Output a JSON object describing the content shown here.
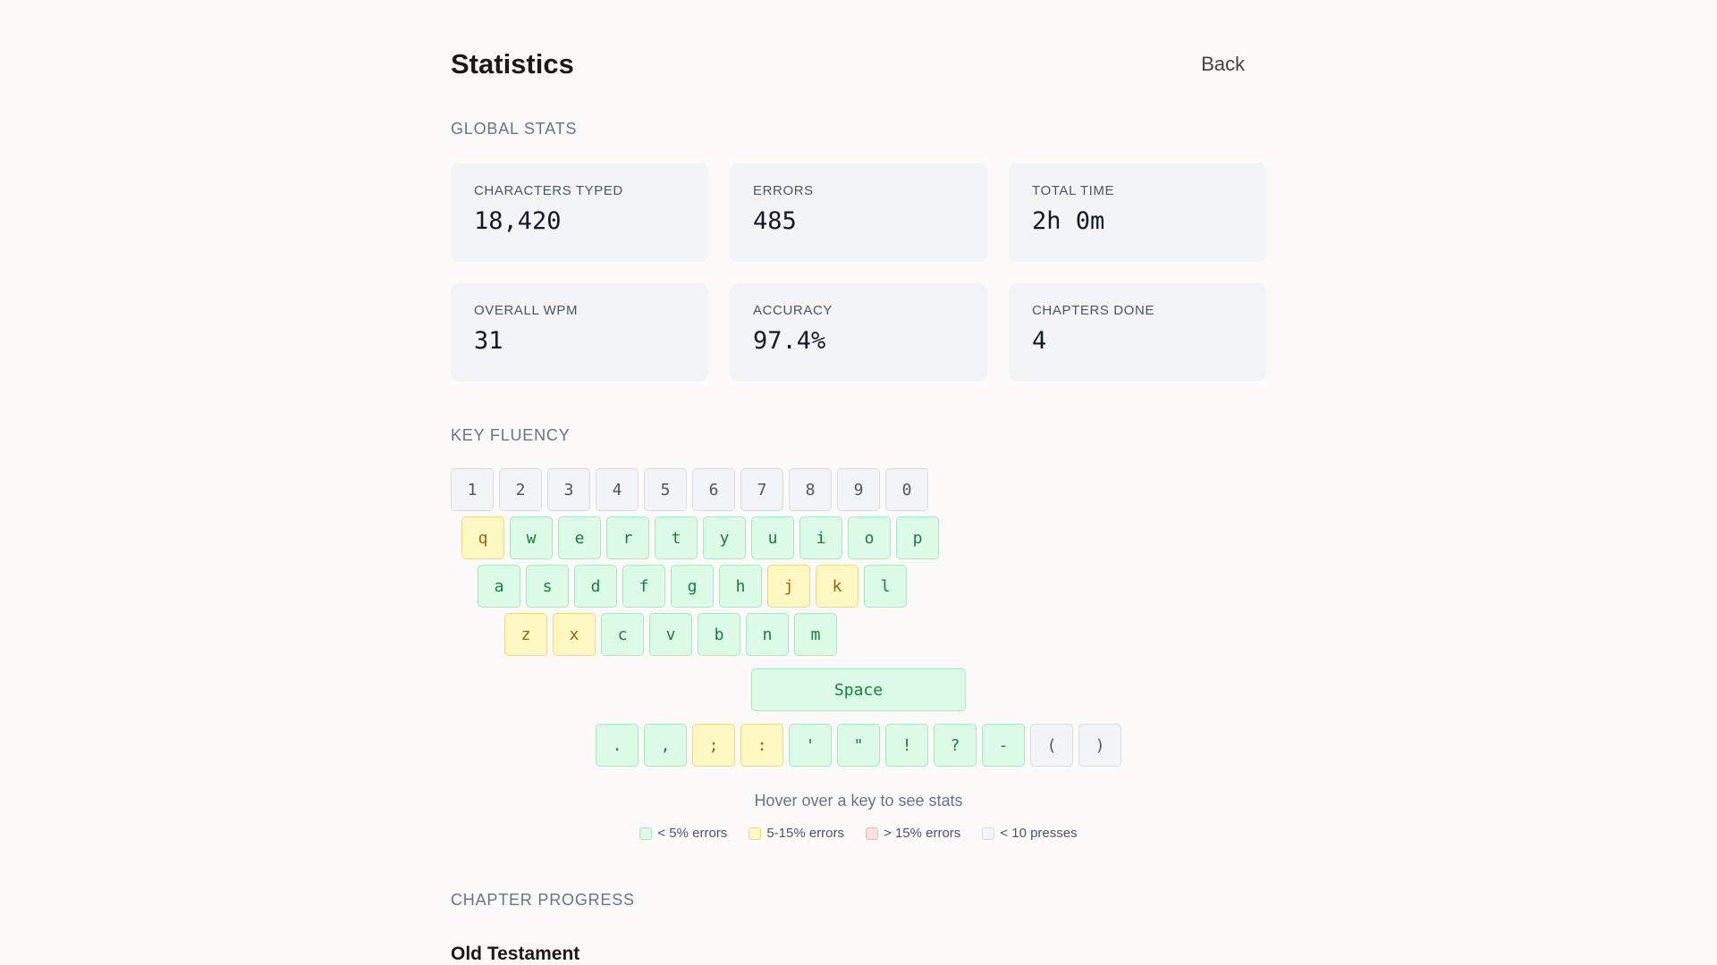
{
  "header": {
    "title": "Statistics",
    "back_label": "Back"
  },
  "global_stats": {
    "heading": "GLOBAL STATS",
    "cards": [
      {
        "label": "CHARACTERS TYPED",
        "value": "18,420"
      },
      {
        "label": "ERRORS",
        "value": "485"
      },
      {
        "label": "TOTAL TIME",
        "value": "2h 0m"
      },
      {
        "label": "OVERALL WPM",
        "value": "31"
      },
      {
        "label": "ACCURACY",
        "value": "97.4%"
      },
      {
        "label": "CHAPTERS DONE",
        "value": "4"
      }
    ]
  },
  "key_fluency": {
    "heading": "KEY FLUENCY",
    "colors": {
      "green": "#dcfce7",
      "yellow": "#fef9c3",
      "red": "#fee2e2",
      "gray": "#f3f4f6"
    },
    "rows": [
      {
        "id": "num",
        "keys": [
          {
            "label": "1",
            "status": "gray"
          },
          {
            "label": "2",
            "status": "gray"
          },
          {
            "label": "3",
            "status": "gray"
          },
          {
            "label": "4",
            "status": "gray"
          },
          {
            "label": "5",
            "status": "gray"
          },
          {
            "label": "6",
            "status": "gray"
          },
          {
            "label": "7",
            "status": "gray"
          },
          {
            "label": "8",
            "status": "gray"
          },
          {
            "label": "9",
            "status": "gray"
          },
          {
            "label": "0",
            "status": "gray"
          }
        ]
      },
      {
        "id": "q",
        "keys": [
          {
            "label": "q",
            "status": "yellow"
          },
          {
            "label": "w",
            "status": "green"
          },
          {
            "label": "e",
            "status": "green"
          },
          {
            "label": "r",
            "status": "green"
          },
          {
            "label": "t",
            "status": "green"
          },
          {
            "label": "y",
            "status": "green"
          },
          {
            "label": "u",
            "status": "green"
          },
          {
            "label": "i",
            "status": "green"
          },
          {
            "label": "o",
            "status": "green"
          },
          {
            "label": "p",
            "status": "green"
          }
        ]
      },
      {
        "id": "a",
        "keys": [
          {
            "label": "a",
            "status": "green"
          },
          {
            "label": "s",
            "status": "green"
          },
          {
            "label": "d",
            "status": "green"
          },
          {
            "label": "f",
            "status": "green"
          },
          {
            "label": "g",
            "status": "green"
          },
          {
            "label": "h",
            "status": "green"
          },
          {
            "label": "j",
            "status": "yellow"
          },
          {
            "label": "k",
            "status": "yellow"
          },
          {
            "label": "l",
            "status": "green"
          }
        ]
      },
      {
        "id": "z",
        "keys": [
          {
            "label": "z",
            "status": "yellow"
          },
          {
            "label": "x",
            "status": "yellow"
          },
          {
            "label": "c",
            "status": "green"
          },
          {
            "label": "v",
            "status": "green"
          },
          {
            "label": "b",
            "status": "green"
          },
          {
            "label": "n",
            "status": "green"
          },
          {
            "label": "m",
            "status": "green"
          }
        ]
      }
    ],
    "space": {
      "label": "Space",
      "status": "green"
    },
    "punctuation": [
      {
        "label": ".",
        "status": "green"
      },
      {
        "label": ",",
        "status": "green"
      },
      {
        "label": ";",
        "status": "yellow"
      },
      {
        "label": ":",
        "status": "yellow"
      },
      {
        "label": "'",
        "status": "green"
      },
      {
        "label": "\"",
        "status": "green"
      },
      {
        "label": "!",
        "status": "green"
      },
      {
        "label": "?",
        "status": "green"
      },
      {
        "label": "-",
        "status": "green"
      },
      {
        "label": "(",
        "status": "gray"
      },
      {
        "label": ")",
        "status": "gray"
      }
    ],
    "hover_hint": "Hover over a key to see stats",
    "legend": [
      {
        "label": "< 5% errors",
        "status": "green"
      },
      {
        "label": "5-15% errors",
        "status": "yellow"
      },
      {
        "label": "> 15% errors",
        "status": "red"
      },
      {
        "label": "< 10 presses",
        "status": "gray"
      }
    ]
  },
  "chapter_progress": {
    "heading": "CHAPTER PROGRESS",
    "group_title": "Old Testament"
  }
}
